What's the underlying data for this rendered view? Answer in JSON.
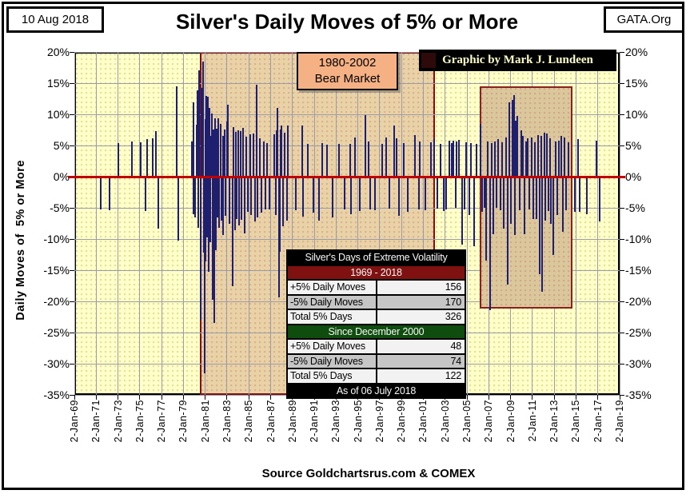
{
  "window": {
    "date_badge": "10 Aug 2018",
    "site_badge": "GATA.Org"
  },
  "title": "Silver's Daily Moves of 5% or More",
  "credit": "Graphic by Mark J. Lundeen",
  "footer": {
    "source": "Source Goldchartsrus.com & COMEX"
  },
  "chart_data": {
    "type": "bar",
    "title": "Silver's Daily Moves of 5% or More",
    "ylabel": "Daily Moves of  5% or More",
    "ylim": [
      -35,
      20
    ],
    "ytick_step": 5,
    "grid": true,
    "x_range_years": [
      1969,
      2019
    ],
    "xtick_labels": [
      "2-Jan-69",
      "2-Jan-71",
      "2-Jan-73",
      "2-Jan-75",
      "2-Jan-77",
      "2-Jan-79",
      "2-Jan-81",
      "2-Jan-83",
      "2-Jan-85",
      "2-Jan-87",
      "2-Jan-89",
      "2-Jan-91",
      "2-Jan-93",
      "2-Jan-95",
      "2-Jan-97",
      "2-Jan-99",
      "2-Jan-01",
      "2-Jan-03",
      "2-Jan-05",
      "2-Jan-07",
      "2-Jan-09",
      "2-Jan-11",
      "2-Jan-13",
      "2-Jan-15",
      "2-Jan-17",
      "2-Jan-19"
    ],
    "bar_color": "#1F1F70",
    "plot_bg": "#FFFFC9",
    "zero_line": {
      "value": 0,
      "color": "#C00000"
    },
    "regions": {
      "bear_market": {
        "label": [
          "1980-2002",
          "Bear Market"
        ],
        "from_year": 1980.5,
        "to_year": 2002.05,
        "fill": "#E8D2A6",
        "border": "#7F1111"
      },
      "highlight_box": {
        "from_year": 2006.17,
        "to_year": 2014.67,
        "from_pct": -21.2,
        "to_pct": 14.5,
        "fill": "#DBC79C",
        "border": "#8B2020"
      }
    },
    "bars_year_pct": [
      [
        1971.4,
        -5.2
      ],
      [
        1972.2,
        -5.4
      ],
      [
        1973.0,
        5.4
      ],
      [
        1974.3,
        5.7
      ],
      [
        1975.1,
        5.5
      ],
      [
        1975.5,
        -5.5
      ],
      [
        1975.65,
        6.0
      ],
      [
        1976.2,
        6.2
      ],
      [
        1976.5,
        7.3
      ],
      [
        1976.7,
        -8.3
      ],
      [
        1978.35,
        14.5
      ],
      [
        1978.5,
        -10.3
      ],
      [
        1979.8,
        5.6
      ],
      [
        1979.9,
        -6.0
      ],
      [
        1979.95,
        11.9
      ],
      [
        1980.1,
        -6.5
      ],
      [
        1980.2,
        8.3
      ],
      [
        1980.3,
        13.8
      ],
      [
        1980.35,
        -8.2
      ],
      [
        1980.45,
        17.0
      ],
      [
        1980.55,
        -9.5
      ],
      [
        1980.6,
        -23.0
      ],
      [
        1980.65,
        14.2
      ],
      [
        1980.75,
        13.0
      ],
      [
        1980.82,
        18.4
      ],
      [
        1980.88,
        -12.2
      ],
      [
        1980.95,
        -31.6
      ],
      [
        1981.0,
        9.2
      ],
      [
        1981.05,
        -13.6
      ],
      [
        1981.12,
        12.9
      ],
      [
        1981.2,
        -9.7
      ],
      [
        1981.27,
        12.8
      ],
      [
        1981.33,
        -15.3
      ],
      [
        1981.4,
        11.0
      ],
      [
        1981.47,
        -10.5
      ],
      [
        1981.53,
        6.6
      ],
      [
        1981.6,
        10.1
      ],
      [
        1981.68,
        -19.8
      ],
      [
        1981.75,
        7.6
      ],
      [
        1981.83,
        -23.4
      ],
      [
        1981.9,
        9.4
      ],
      [
        1981.97,
        -11.8
      ],
      [
        1982.05,
        7.7
      ],
      [
        1982.12,
        -6.5
      ],
      [
        1982.2,
        9.3
      ],
      [
        1982.3,
        -8.2
      ],
      [
        1982.4,
        8.4
      ],
      [
        1982.5,
        -7.0
      ],
      [
        1982.6,
        6.6
      ],
      [
        1982.67,
        -9.4
      ],
      [
        1982.8,
        7.6
      ],
      [
        1982.87,
        -6.3
      ],
      [
        1983.0,
        8.9
      ],
      [
        1983.1,
        11.6
      ],
      [
        1983.2,
        -7.5
      ],
      [
        1983.55,
        -17.6
      ],
      [
        1983.62,
        7.9
      ],
      [
        1983.7,
        -8.6
      ],
      [
        1983.8,
        7.2
      ],
      [
        1983.9,
        -6.8
      ],
      [
        1984.0,
        7.4
      ],
      [
        1984.1,
        -7.8
      ],
      [
        1984.25,
        7.3
      ],
      [
        1984.35,
        -6.9
      ],
      [
        1984.5,
        7.8
      ],
      [
        1984.6,
        -9.1
      ],
      [
        1984.75,
        6.4
      ],
      [
        1984.9,
        -5.6
      ],
      [
        1985.1,
        6.8
      ],
      [
        1985.2,
        -6.2
      ],
      [
        1985.45,
        6.9
      ],
      [
        1985.55,
        -7.2
      ],
      [
        1985.7,
        14.7
      ],
      [
        1985.82,
        -6.6
      ],
      [
        1986.0,
        6.2
      ],
      [
        1986.15,
        -5.8
      ],
      [
        1986.35,
        5.6
      ],
      [
        1986.5,
        -5.3
      ],
      [
        1986.7,
        5.4
      ],
      [
        1986.9,
        -5.2
      ],
      [
        1987.3,
        6.8
      ],
      [
        1987.45,
        -6.2
      ],
      [
        1987.55,
        7.4
      ],
      [
        1987.65,
        11.0
      ],
      [
        1987.75,
        -19.3
      ],
      [
        1987.85,
        -12.0
      ],
      [
        1987.92,
        7.6
      ],
      [
        1988.0,
        8.2
      ],
      [
        1988.1,
        -7.9
      ],
      [
        1988.3,
        7.0
      ],
      [
        1988.5,
        -7.1
      ],
      [
        1988.6,
        8.2
      ],
      [
        1989.3,
        -5.4
      ],
      [
        1989.9,
        8.2
      ],
      [
        1989.97,
        -6.4
      ],
      [
        1990.4,
        5.3
      ],
      [
        1990.9,
        -5.8
      ],
      [
        1991.4,
        -7.1
      ],
      [
        1991.7,
        5.4
      ],
      [
        1992.2,
        5.1
      ],
      [
        1992.7,
        -6.6
      ],
      [
        1993.3,
        5.2
      ],
      [
        1993.8,
        -5.3
      ],
      [
        1994.3,
        5.3
      ],
      [
        1994.4,
        -6.0
      ],
      [
        1994.75,
        6.3
      ],
      [
        1995.2,
        -5.5
      ],
      [
        1995.7,
        9.9
      ],
      [
        1996.0,
        5.6
      ],
      [
        1996.1,
        -5.2
      ],
      [
        1996.6,
        -5.4
      ],
      [
        1997.2,
        5.3
      ],
      [
        1997.6,
        6.3
      ],
      [
        1997.9,
        -5.1
      ],
      [
        1998.3,
        8.2
      ],
      [
        1998.55,
        6.1
      ],
      [
        1998.75,
        -6.3
      ],
      [
        1999.2,
        5.4
      ],
      [
        1999.6,
        -5.6
      ],
      [
        2000.2,
        6.7
      ],
      [
        2000.6,
        -5.2
      ],
      [
        2000.7,
        5.7
      ],
      [
        2001.2,
        -5.4
      ],
      [
        2001.7,
        5.5
      ],
      [
        2002.0,
        6.0
      ],
      [
        2002.25,
        -5.1
      ],
      [
        2002.6,
        5.3
      ],
      [
        2002.9,
        -5.5
      ],
      [
        2003.1,
        -5.3
      ],
      [
        2003.4,
        5.8
      ],
      [
        2003.6,
        5.4
      ],
      [
        2003.75,
        5.8
      ],
      [
        2003.95,
        -5.0
      ],
      [
        2004.05,
        5.6
      ],
      [
        2004.25,
        5.9
      ],
      [
        2004.55,
        -10.9
      ],
      [
        2004.75,
        -5.2
      ],
      [
        2004.95,
        5.5
      ],
      [
        2005.25,
        -6.2
      ],
      [
        2005.4,
        5.4
      ],
      [
        2005.65,
        -11.1
      ],
      [
        2005.85,
        5.3
      ],
      [
        2006.25,
        8.5
      ],
      [
        2006.4,
        -5.6
      ],
      [
        2006.6,
        -5.0
      ],
      [
        2006.75,
        -13.5
      ],
      [
        2006.9,
        5.6
      ],
      [
        2007.1,
        -21.4
      ],
      [
        2007.25,
        5.4
      ],
      [
        2007.4,
        -9.2
      ],
      [
        2007.55,
        5.7
      ],
      [
        2007.7,
        -5.0
      ],
      [
        2007.85,
        6.0
      ],
      [
        2008.1,
        -5.4
      ],
      [
        2008.25,
        5.5
      ],
      [
        2008.4,
        -8.3
      ],
      [
        2008.6,
        6.3
      ],
      [
        2008.75,
        -17.3
      ],
      [
        2008.9,
        11.9
      ],
      [
        2009.0,
        -7.5
      ],
      [
        2009.15,
        12.3
      ],
      [
        2009.3,
        13.1
      ],
      [
        2009.38,
        -9.4
      ],
      [
        2009.5,
        9.0
      ],
      [
        2009.65,
        9.7
      ],
      [
        2009.8,
        -5.4
      ],
      [
        2009.95,
        7.5
      ],
      [
        2010.15,
        6.5
      ],
      [
        2010.3,
        -9.2
      ],
      [
        2010.45,
        5.6
      ],
      [
        2010.6,
        6.1
      ],
      [
        2010.72,
        -5.3
      ],
      [
        2010.95,
        6.3
      ],
      [
        2011.05,
        -6.8
      ],
      [
        2011.2,
        5.5
      ],
      [
        2011.35,
        -6.8
      ],
      [
        2011.5,
        6.7
      ],
      [
        2011.65,
        -15.7
      ],
      [
        2011.78,
        6.6
      ],
      [
        2011.9,
        -18.4
      ],
      [
        2012.1,
        7.1
      ],
      [
        2012.2,
        -7.1
      ],
      [
        2012.32,
        6.9
      ],
      [
        2012.45,
        -5.5
      ],
      [
        2012.6,
        6.1
      ],
      [
        2012.72,
        -7.5
      ],
      [
        2012.95,
        -12.5
      ],
      [
        2013.1,
        5.6
      ],
      [
        2013.3,
        -6.2
      ],
      [
        2013.45,
        5.8
      ],
      [
        2013.65,
        6.5
      ],
      [
        2013.8,
        -8.8
      ],
      [
        2013.92,
        6.3
      ],
      [
        2014.1,
        -5.4
      ],
      [
        2014.3,
        5.5
      ],
      [
        2014.9,
        -5.6
      ],
      [
        2015.2,
        6.0
      ],
      [
        2015.32,
        -5.6
      ],
      [
        2016.0,
        -6.0
      ],
      [
        2016.85,
        5.8
      ],
      [
        2017.15,
        -7.2
      ]
    ]
  },
  "stats_table": {
    "title": "Silver's Days of Extreme Volatility",
    "sections": [
      {
        "header": "1969 - 2018",
        "header_bg": "#7F1111",
        "rows": [
          [
            "+5% Daily Moves",
            "156"
          ],
          [
            "-5% Daily Moves",
            "170"
          ],
          [
            "Total 5% Days",
            "326"
          ]
        ]
      },
      {
        "header": "Since December 2000",
        "header_bg": "#0E4D0E",
        "rows": [
          [
            "+5% Daily Moves",
            "48"
          ],
          [
            "-5% Daily Moves",
            "74"
          ],
          [
            "Total 5% Days",
            "122"
          ]
        ]
      }
    ],
    "footer": "As of 06 July 2018"
  }
}
